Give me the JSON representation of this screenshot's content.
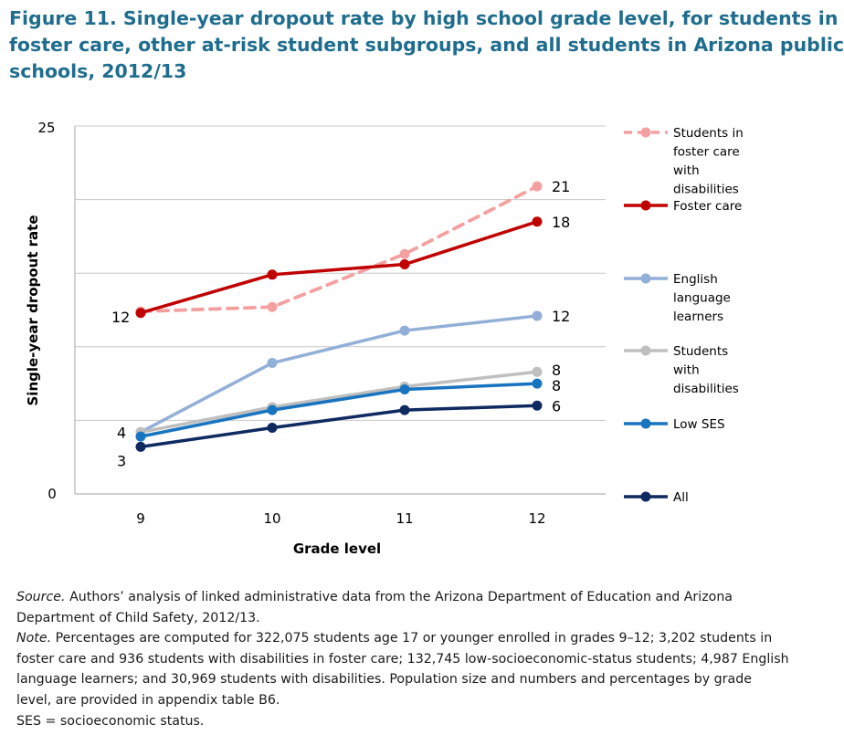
{
  "title_lines": [
    "Figure 11. Single-year dropout rate by high school grade level, for students in",
    "foster care, other at-risk student subgroups, and all students in Arizona public",
    "schools, 2012/13"
  ],
  "chart_data": {
    "type": "line",
    "xlabel": "Grade level",
    "ylabel": "Single-year dropout rate",
    "categories": [
      "9",
      "10",
      "11",
      "12"
    ],
    "ylim": [
      0,
      25
    ],
    "y_tick_labels": [
      "0",
      "25"
    ],
    "grid": true,
    "legend_position": "right",
    "series": [
      {
        "name": "Students in foster care with disabilities",
        "legend_lines": [
          "Students in",
          "foster care",
          "with",
          "disabilities"
        ],
        "color": "#f4a0a0",
        "dashed": true,
        "values": [
          12.4,
          12.7,
          16.3,
          20.9
        ],
        "end_label": "21",
        "start_label": "12"
      },
      {
        "name": "Foster care",
        "legend_lines": [
          "Foster care"
        ],
        "color": "#c00000",
        "dashed": false,
        "values": [
          12.3,
          14.9,
          15.6,
          18.5
        ],
        "end_label": "18",
        "start_label": ""
      },
      {
        "name": "English language learners",
        "legend_lines": [
          "English",
          "language",
          "learners"
        ],
        "color": "#92afd7",
        "dashed": false,
        "values": [
          4.2,
          8.9,
          11.1,
          12.1
        ],
        "end_label": "12",
        "start_label": ""
      },
      {
        "name": "Students with disabilities",
        "legend_lines": [
          "Students",
          "with",
          "disabilities"
        ],
        "color": "#bfbfbf",
        "dashed": false,
        "values": [
          4.2,
          5.9,
          7.3,
          8.3
        ],
        "end_label": "8",
        "start_label": "4"
      },
      {
        "name": "Low SES",
        "legend_lines": [
          "Low SES"
        ],
        "color": "#1874c0",
        "dashed": false,
        "values": [
          3.9,
          5.7,
          7.1,
          7.5
        ],
        "end_label": "8",
        "start_label": ""
      },
      {
        "name": "All",
        "legend_lines": [
          "All"
        ],
        "color": "#0f2a60",
        "dashed": false,
        "values": [
          3.2,
          4.5,
          5.7,
          6.0
        ],
        "end_label": "6",
        "start_label": "3"
      }
    ]
  },
  "notes": {
    "source_lead": "Source.",
    "source_line1_rest": " Authors’ analysis of linked administrative data from the Arizona Department of Education and Arizona",
    "source_line2": "Department of Child Safety, 2012/13.",
    "note_lead": "Note.",
    "note_line1_rest": " Percentages are computed for 322,075 students age 17 or younger enrolled in grades 9–12; 3,202 students in",
    "note_line2": "foster care and 936 students with disabilities in foster care; 132,745 low-socioeconomic-status students; 4,987 English",
    "note_line3": "language learners; and 30,969 students with disabilities. Population size and numbers and percentages by grade",
    "note_line4": "level, are provided in appendix table B6.",
    "ses_line": "SES = socioeconomic status."
  }
}
